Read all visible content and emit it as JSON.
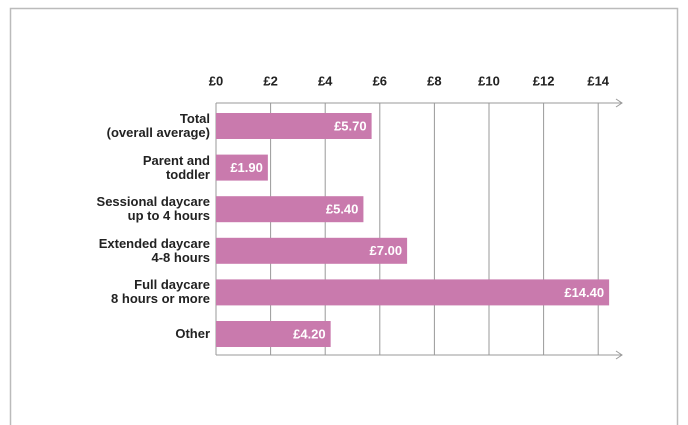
{
  "chart_data": {
    "type": "bar",
    "orientation": "horizontal",
    "categories": [
      "Total\n(overall average)",
      "Parent and\ntoddler",
      "Sessional daycare\nup to 4 hours",
      "Extended daycare\n4-8 hours",
      "Full daycare\n8 hours or more",
      "Other"
    ],
    "values": [
      5.7,
      1.9,
      5.4,
      7.0,
      14.4,
      4.2
    ],
    "value_labels": [
      "£5.70",
      "£1.90",
      "£5.40",
      "£7.00",
      "£14.40",
      "£4.20"
    ],
    "color": "#c97aad",
    "xlim": [
      0,
      15
    ],
    "xticks": [
      {
        "value": 0,
        "label": "£0"
      },
      {
        "value": 2,
        "label": "£2"
      },
      {
        "value": 4,
        "label": "£4"
      },
      {
        "value": 6,
        "label": "£6"
      },
      {
        "value": 8,
        "label": "£8"
      },
      {
        "value": 10,
        "label": "£10"
      },
      {
        "value": 12,
        "label": "£12"
      },
      {
        "value": 14,
        "label": "£14"
      }
    ],
    "grid": true
  }
}
